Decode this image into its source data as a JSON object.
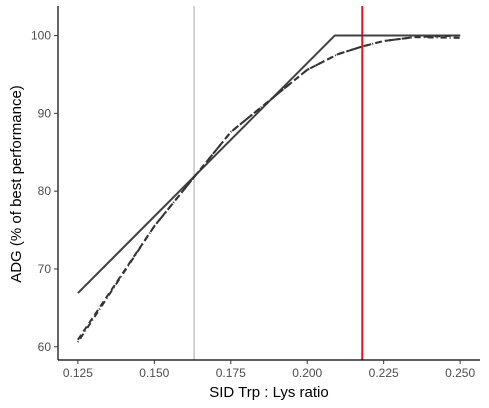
{
  "chart_data": {
    "type": "line",
    "title": "",
    "xlabel": "SID Trp : Lys ratio",
    "ylabel": "ADG (% of best performance)",
    "xlim": [
      0.1185,
      0.2565
    ],
    "ylim": [
      58.3,
      103.8
    ],
    "x_ticks": [
      {
        "value": 0.125,
        "label": "0.125"
      },
      {
        "value": 0.15,
        "label": "0.150"
      },
      {
        "value": 0.175,
        "label": "0.175"
      },
      {
        "value": 0.2,
        "label": "0.200"
      },
      {
        "value": 0.225,
        "label": "0.225"
      },
      {
        "value": 0.25,
        "label": "0.250"
      }
    ],
    "y_ticks": [
      {
        "value": 60,
        "label": "60"
      },
      {
        "value": 70,
        "label": "70"
      },
      {
        "value": 80,
        "label": "80"
      },
      {
        "value": 90,
        "label": "90"
      },
      {
        "value": 100,
        "label": "100"
      }
    ],
    "grid": false,
    "legend": "none",
    "series": [
      {
        "style": "solid",
        "color": "#404040",
        "x": [
          0.125,
          0.209,
          0.25
        ],
        "y": [
          66.9,
          100.0,
          100.0
        ]
      },
      {
        "style": "dashed",
        "color": "#333333",
        "x": [
          0.125,
          0.15,
          0.163,
          0.175,
          0.2,
          0.21,
          0.218,
          0.225,
          0.235,
          0.25
        ],
        "y": [
          60.9,
          75.5,
          81.8,
          87.6,
          95.6,
          97.6,
          98.6,
          99.3,
          99.8,
          100.0
        ]
      },
      {
        "style": "dotdash",
        "color": "#333333",
        "x": [
          0.125,
          0.15,
          0.163,
          0.175,
          0.2,
          0.21,
          0.218,
          0.225,
          0.235,
          0.25
        ],
        "y": [
          60.6,
          75.5,
          81.8,
          87.6,
          95.6,
          97.6,
          98.6,
          99.3,
          99.8,
          99.7
        ]
      }
    ],
    "reference_lines": [
      {
        "axis": "x",
        "value": 0.163,
        "color": "#a6a6a6"
      },
      {
        "axis": "x",
        "value": 0.218,
        "color": "#e8141c"
      }
    ]
  }
}
